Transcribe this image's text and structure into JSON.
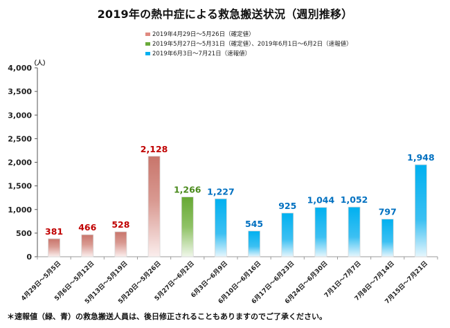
{
  "chart_data": {
    "type": "bar",
    "title": "2019年の熱中症による救急搬送状況（週別推移）",
    "xlabel": "",
    "ylabel": "（人）",
    "ylim": [
      0,
      4000
    ],
    "yticks": [
      0,
      500,
      1000,
      1500,
      2000,
      2500,
      3000,
      3500,
      4000
    ],
    "ytick_labels": [
      "0",
      "500",
      "1,000",
      "1,500",
      "2,000",
      "2,500",
      "3,000",
      "3,500",
      "4,000"
    ],
    "grid": false,
    "legend_position": "top-center",
    "categories": [
      "4月29日～5月5日",
      "5月6日～5月12日",
      "5月13日～5月19日",
      "5月20日～5月26日",
      "5月27日～6月2日",
      "6月3日～6月9日",
      "6月10日～6月16日",
      "6月17日～6月23日",
      "6月24日～6月30日",
      "7月1日～7月7日",
      "7月8日～7月14日",
      "7月15日～7月21日"
    ],
    "values": [
      381,
      466,
      528,
      2128,
      1266,
      1227,
      545,
      925,
      1044,
      1052,
      797,
      1948
    ],
    "value_labels": [
      "381",
      "466",
      "528",
      "2,128",
      "1,266",
      "1,227",
      "545",
      "925",
      "1,044",
      "1,052",
      "797",
      "1,948"
    ],
    "groups": [
      "red",
      "red",
      "red",
      "red",
      "green",
      "blue",
      "blue",
      "blue",
      "blue",
      "blue",
      "blue",
      "blue"
    ],
    "series": [
      {
        "name": "2019年4月29日～5月26日（確定値）",
        "key": "red",
        "color": "#c8756b",
        "label_color": "#c00000"
      },
      {
        "name": "2019年5月27日～5月31日（確定値）、2019年6月1日～6月2日（速報値）",
        "key": "green",
        "color": "#6aaa3a",
        "label_color": "#4a8a1c"
      },
      {
        "name": "2019年6月3日～7月21日（速報値）",
        "key": "blue",
        "color": "#00b0f0",
        "label_color": "#0070c0"
      }
    ]
  },
  "footnote": "＊速報値（緑、青）の救急搬送人員は、後日修正されることもありますのでご了承ください。"
}
